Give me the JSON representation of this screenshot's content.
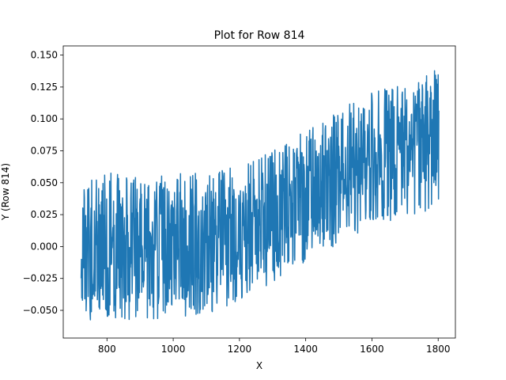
{
  "chart_data": {
    "type": "line",
    "title": "Plot for Row 814",
    "xlabel": "X",
    "ylabel": "Y (Row 814)",
    "xlim": [
      668,
      1852
    ],
    "ylim": [
      -0.0717,
      0.1572
    ],
    "xticks": [
      800,
      1000,
      1200,
      1400,
      1600,
      1800
    ],
    "xtick_labels": [
      "800",
      "1000",
      "1200",
      "1400",
      "1600",
      "1800"
    ],
    "yticks": [
      -0.05,
      -0.025,
      0.0,
      0.025,
      0.05,
      0.075,
      0.1,
      0.125,
      0.15
    ],
    "ytick_labels": [
      "−0.050",
      "−0.025",
      "0.000",
      "0.025",
      "0.050",
      "0.075",
      "0.100",
      "0.125",
      "0.150"
    ],
    "grid": false,
    "series": [
      {
        "color": "#1f77b4",
        "trend_points": [
          {
            "x": 722,
            "y": 0.0
          },
          {
            "x": 1000,
            "y": 0.0
          },
          {
            "x": 1150,
            "y": 0.005
          },
          {
            "x": 1300,
            "y": 0.025
          },
          {
            "x": 1450,
            "y": 0.045
          },
          {
            "x": 1600,
            "y": 0.07
          },
          {
            "x": 1800,
            "y": 0.085
          }
        ],
        "amplitude_points": [
          {
            "x": 722,
            "y": 0.058
          },
          {
            "x": 1100,
            "y": 0.056
          },
          {
            "x": 1400,
            "y": 0.052
          },
          {
            "x": 1800,
            "y": 0.055
          }
        ],
        "x_start": 722,
        "x_end": 1802,
        "point_count": 1081
      }
    ]
  }
}
